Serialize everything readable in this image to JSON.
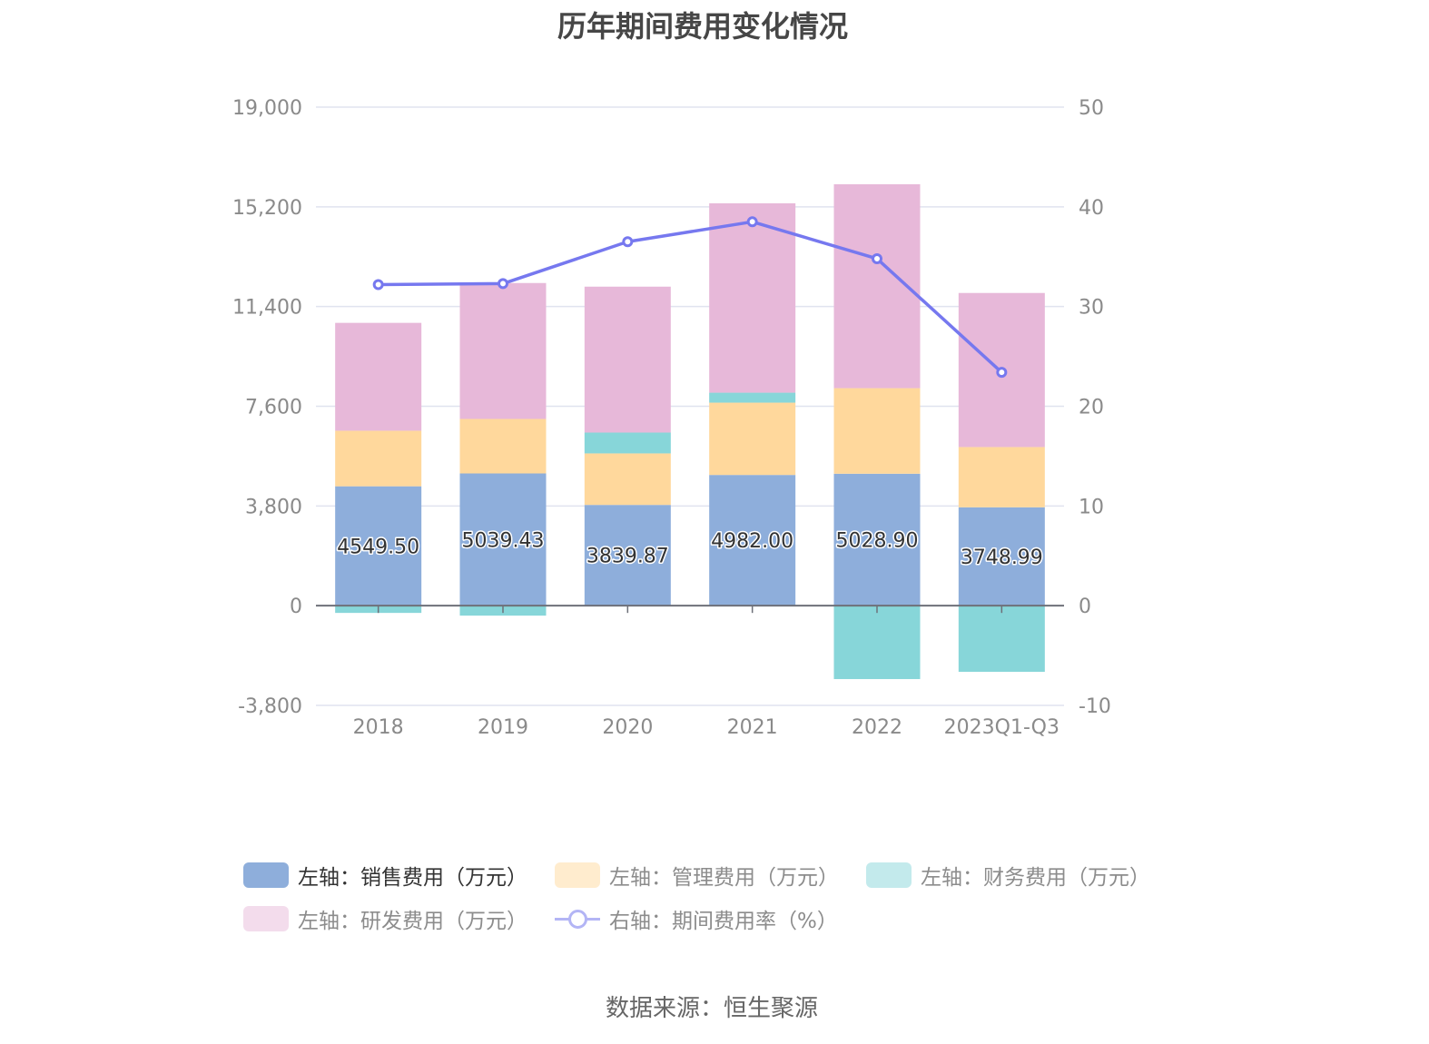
{
  "chart_data": {
    "type": "bar",
    "title": "历年期间费用变化情况",
    "categories": [
      "2018",
      "2019",
      "2020",
      "2021",
      "2022",
      "2023Q1-Q3"
    ],
    "stacked": true,
    "series": [
      {
        "name": "左轴：销售费用（万元）",
        "axis": "left",
        "type": "bar",
        "color": "#8eaedb",
        "values": [
          4549.5,
          5039.43,
          3839.87,
          4982.0,
          5028.9,
          3748.99
        ],
        "labels": [
          "4549.50",
          "5039.43",
          "3839.87",
          "4982.00",
          "5028.90",
          "3748.99"
        ]
      },
      {
        "name": "左轴：管理费用（万元）",
        "axis": "left",
        "type": "bar",
        "color": "#ffd89c",
        "values": [
          2118,
          2076,
          1963,
          2755,
          3261,
          2296
        ]
      },
      {
        "name": "左轴：财务费用（万元）",
        "axis": "left",
        "type": "bar",
        "color": "#87d6d9",
        "values": [
          -276,
          -380,
          794,
          380,
          -2798,
          -2522
        ]
      },
      {
        "name": "左轴：研发费用（万元）",
        "axis": "left",
        "type": "bar",
        "color": "#e7b8d9",
        "values": [
          4110,
          5181,
          5561,
          7219,
          7772,
          5872
        ]
      },
      {
        "name": "右轴：期间费用率（%）",
        "axis": "right",
        "type": "line",
        "color": "#7678ef",
        "values": [
          32.2,
          32.3,
          36.5,
          38.5,
          34.8,
          23.4
        ]
      }
    ],
    "left_axis": {
      "min": -3800,
      "max": 19000,
      "ticks": [
        -3800,
        0,
        3800,
        7600,
        11400,
        15200,
        19000
      ],
      "tick_labels": [
        "-3,800",
        "0",
        "3,800",
        "7,600",
        "11,400",
        "15,200",
        "19,000"
      ]
    },
    "right_axis": {
      "min": -10,
      "max": 50,
      "ticks": [
        -10,
        0,
        10,
        20,
        30,
        40,
        50
      ],
      "tick_labels": [
        "-10",
        "0",
        "10",
        "20",
        "30",
        "40",
        "50"
      ]
    },
    "grid": true,
    "legend_position": "bottom"
  },
  "legend": [
    {
      "label": "左轴：销售费用（万元）",
      "swatch": "#8eaedb",
      "active": true
    },
    {
      "label": "左轴：管理费用（万元）",
      "swatch": "#ffecce",
      "active": false
    },
    {
      "label": "左轴：财务费用（万元）",
      "swatch": "#c3eaec",
      "active": false
    },
    {
      "label": "左轴：研发费用（万元）",
      "swatch": "#f3dcec",
      "active": false
    },
    {
      "label": "右轴：期间费用率（%）",
      "swatch": "#b3b5f5",
      "active": false
    }
  ],
  "source": "数据来源：恒生聚源"
}
